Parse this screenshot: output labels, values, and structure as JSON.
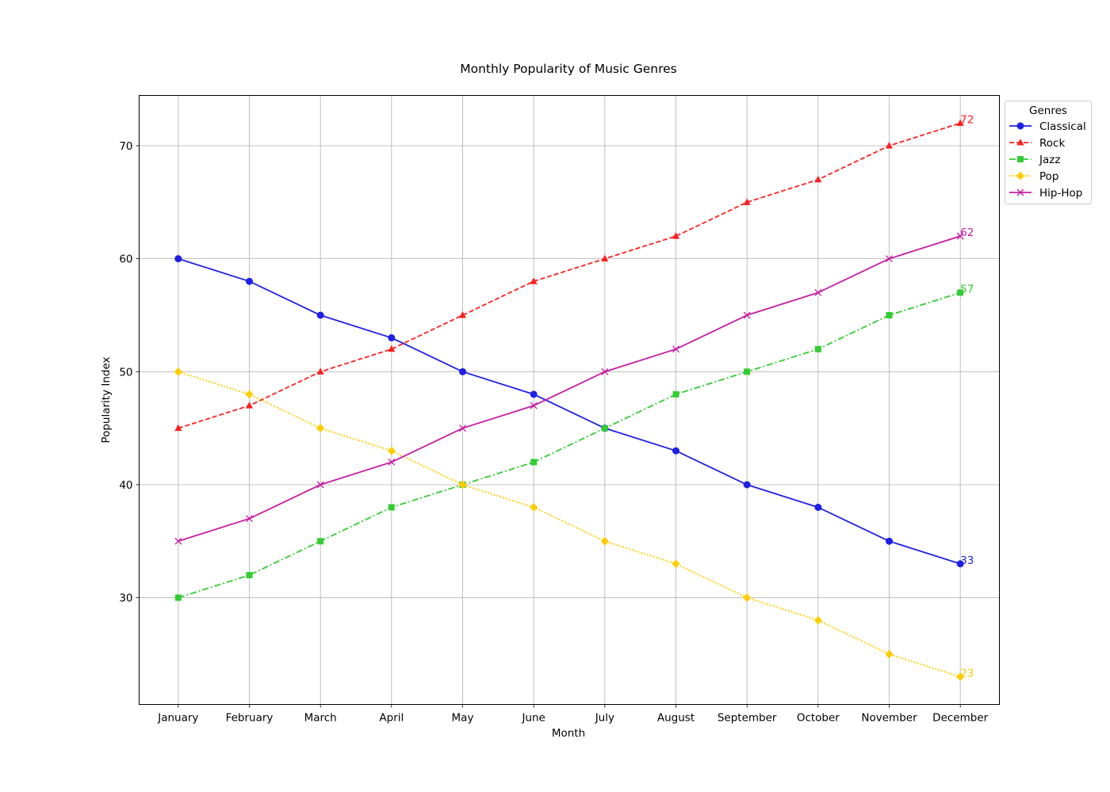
{
  "chart_data": {
    "type": "line",
    "title": "Monthly Popularity of Music Genres",
    "xlabel": "Month",
    "ylabel": "Popularity Index",
    "categories": [
      "January",
      "February",
      "March",
      "April",
      "May",
      "June",
      "July",
      "August",
      "September",
      "October",
      "November",
      "December"
    ],
    "ylim": [
      20.55,
      74.45
    ],
    "yticks": [
      30,
      40,
      50,
      60,
      70
    ],
    "grid": true,
    "legend": {
      "title": "Genres",
      "placement": "outside-top-right"
    },
    "series": [
      {
        "name": "Classical",
        "color": "#1f1fe6",
        "line_style": "solid",
        "marker": "circle",
        "values": [
          60,
          58,
          55,
          53,
          50,
          48,
          45,
          43,
          40,
          38,
          35,
          33
        ],
        "end_label": "33"
      },
      {
        "name": "Rock",
        "color": "#ff1f1f",
        "line_style": "dashed",
        "marker": "triangle",
        "values": [
          45,
          47,
          50,
          52,
          55,
          58,
          60,
          62,
          65,
          67,
          70,
          72
        ],
        "end_label": "72"
      },
      {
        "name": "Jazz",
        "color": "#33cc33",
        "line_style": "dashdot",
        "marker": "square",
        "values": [
          30,
          32,
          35,
          38,
          40,
          42,
          45,
          48,
          50,
          52,
          55,
          57
        ],
        "end_label": "57"
      },
      {
        "name": "Pop",
        "color": "#ffcc00",
        "line_style": "dotted",
        "marker": "diamond",
        "values": [
          50,
          48,
          45,
          43,
          40,
          38,
          35,
          33,
          30,
          28,
          25,
          23
        ],
        "end_label": "23"
      },
      {
        "name": "Hip-Hop",
        "color": "#c71ba3",
        "line_style": "solid",
        "marker": "x",
        "values": [
          35,
          37,
          40,
          42,
          45,
          47,
          50,
          52,
          55,
          57,
          60,
          62
        ],
        "end_label": "62"
      }
    ]
  }
}
